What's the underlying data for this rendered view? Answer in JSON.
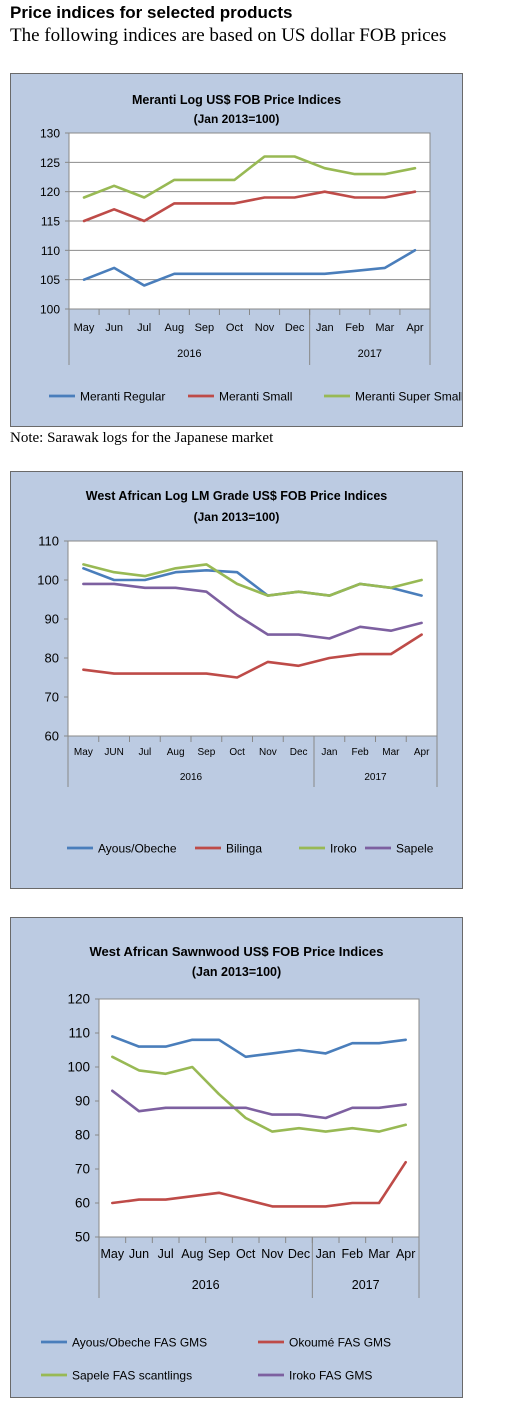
{
  "page": {
    "heading": "Price indices for selected products",
    "subheading": "The following indices are based on US dollar FOB prices",
    "note": "Note: Sarawak logs for the Japanese market"
  },
  "chart_data": [
    {
      "type": "line",
      "title": "Meranti Log US$ FOB Price Indices",
      "subtitle": "(Jan 2013=100)",
      "categories": [
        "May",
        "Jun",
        "Jul",
        "Aug",
        "Sep",
        "Oct",
        "Nov",
        "Dec",
        "Jan",
        "Feb",
        "Mar",
        "Apr"
      ],
      "year_groups": [
        {
          "label": "2016",
          "span": 8
        },
        {
          "label": "2017",
          "span": 4
        }
      ],
      "ylim": [
        100,
        130
      ],
      "yticks": [
        100,
        105,
        110,
        115,
        120,
        125,
        130
      ],
      "grid": true,
      "legend": "bottom",
      "series": [
        {
          "name": "Meranti Regular",
          "color": "#4a7ebb",
          "values": [
            105,
            107,
            104,
            106,
            106,
            106,
            106,
            106,
            106,
            106.5,
            107,
            110
          ]
        },
        {
          "name": "Meranti Small",
          "color": "#be4b48",
          "values": [
            115,
            117,
            115,
            118,
            118,
            118,
            119,
            119,
            120,
            119,
            119,
            120
          ]
        },
        {
          "name": "Meranti Super Small",
          "color": "#98b954",
          "values": [
            119,
            121,
            119,
            122,
            122,
            122,
            126,
            126,
            124,
            123,
            123,
            124
          ]
        }
      ]
    },
    {
      "type": "line",
      "title": "West African Log LM Grade US$ FOB Price Indices",
      "subtitle": "(Jan 2013=100)",
      "categories": [
        "May",
        "JUN",
        "Jul",
        "Aug",
        "Sep",
        "Oct",
        "Nov",
        "Dec",
        "Jan",
        "Feb",
        "Mar",
        "Apr"
      ],
      "year_groups": [
        {
          "label": "2016",
          "span": 8
        },
        {
          "label": "2017",
          "span": 4
        }
      ],
      "ylim": [
        60,
        110
      ],
      "yticks": [
        60,
        70,
        80,
        90,
        100,
        110
      ],
      "grid": false,
      "legend": "bottom",
      "series": [
        {
          "name": "Ayous/Obeche",
          "color": "#4a7ebb",
          "values": [
            103,
            100,
            100,
            102,
            102.5,
            102,
            96,
            97,
            96,
            99,
            98,
            96
          ]
        },
        {
          "name": "Bilinga",
          "color": "#be4b48",
          "values": [
            77,
            76,
            76,
            76,
            76,
            75,
            79,
            78,
            80,
            81,
            81,
            86
          ]
        },
        {
          "name": "Iroko",
          "color": "#98b954",
          "values": [
            104,
            102,
            101,
            103,
            104,
            99,
            96,
            97,
            96,
            99,
            98,
            100
          ]
        },
        {
          "name": "Sapele",
          "color": "#7d60a0",
          "values": [
            99,
            99,
            98,
            98,
            97,
            91,
            86,
            86,
            85,
            88,
            87,
            89
          ]
        }
      ]
    },
    {
      "type": "line",
      "title": "West African Sawnwood US$ FOB Price Indices",
      "subtitle": "(Jan 2013=100)",
      "categories": [
        "May",
        "Jun",
        "Jul",
        "Aug",
        "Sep",
        "Oct",
        "Nov",
        "Dec",
        "Jan",
        "Feb",
        "Mar",
        "Apr"
      ],
      "year_groups": [
        {
          "label": "2016",
          "span": 8
        },
        {
          "label": "2017",
          "span": 4
        }
      ],
      "ylim": [
        50,
        120
      ],
      "yticks": [
        50,
        60,
        70,
        80,
        90,
        100,
        110,
        120
      ],
      "grid": false,
      "legend": "bottom",
      "series": [
        {
          "name": "Ayous/Obeche  FAS GMS",
          "color": "#4a7ebb",
          "values": [
            109,
            106,
            106,
            108,
            108,
            103,
            104,
            105,
            104,
            107,
            107,
            108
          ]
        },
        {
          "name": "Okoumé  FAS GMS",
          "color": "#be4b48",
          "values": [
            60,
            61,
            61,
            62,
            63,
            61,
            59,
            59,
            59,
            60,
            60,
            72
          ]
        },
        {
          "name": "Sapele FAS scantlings",
          "color": "#98b954",
          "values": [
            103,
            99,
            98,
            100,
            92,
            85,
            81,
            82,
            81,
            82,
            81,
            83
          ]
        },
        {
          "name": "Iroko FAS GMS",
          "color": "#7d60a0",
          "values": [
            93,
            87,
            88,
            88,
            88,
            88,
            86,
            86,
            85,
            88,
            88,
            89
          ]
        }
      ]
    }
  ]
}
